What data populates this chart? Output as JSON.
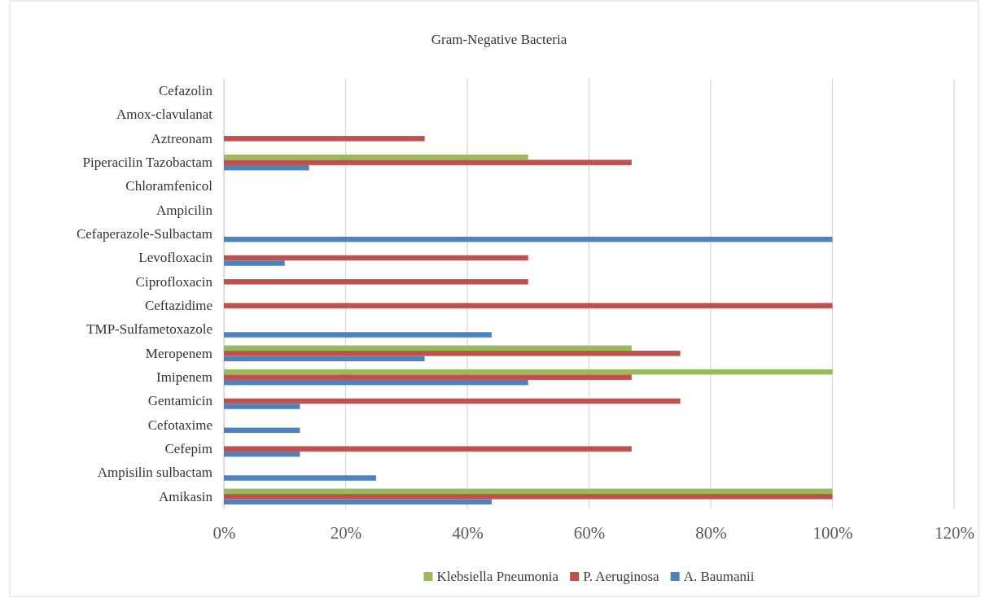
{
  "chart_data": {
    "type": "bar",
    "orientation": "horizontal",
    "title": "Gram-Negative Bacteria",
    "categories": [
      "Cefazolin",
      "Amox-clavulanat",
      "Aztreonam",
      "Piperacilin Tazobactam",
      "Chloramfenicol",
      "Ampicilin",
      "Cefaperazole-Sulbactam",
      "Levofloxacin",
      "Ciprofloxacin",
      "Ceftazidime",
      "TMP-Sulfametoxazole",
      "Meropenem",
      "Imipenem",
      "Gentamicin",
      "Cefotaxime",
      "Cefepim",
      "Ampisilin sulbactam",
      "Amikasin"
    ],
    "series": [
      {
        "name": "Klebsiella Pneumonia",
        "color": "#9bbb59",
        "values": [
          0,
          0,
          0,
          50,
          0,
          0,
          0,
          0,
          0,
          0,
          0,
          67,
          100,
          0,
          0,
          0,
          0,
          100
        ]
      },
      {
        "name": "P. Aeruginosa",
        "color": "#c0504d",
        "values": [
          0,
          0,
          33,
          67,
          0,
          0,
          0,
          50,
          50,
          100,
          0,
          75,
          67,
          75,
          0,
          67,
          0,
          100
        ]
      },
      {
        "name": "A. Baumanii",
        "color": "#4f81bd",
        "values": [
          0,
          0,
          0,
          14,
          0,
          0,
          100,
          10,
          0,
          0,
          44,
          33,
          50,
          12.5,
          12.5,
          12.5,
          25,
          44
        ]
      }
    ],
    "xlim": [
      0,
      120
    ],
    "xticks": [
      {
        "value": 0,
        "label": "0%"
      },
      {
        "value": 20,
        "label": "20%"
      },
      {
        "value": 40,
        "label": "40%"
      },
      {
        "value": 60,
        "label": "60%"
      },
      {
        "value": 80,
        "label": "80%"
      },
      {
        "value": 100,
        "label": "100%"
      },
      {
        "value": 120,
        "label": "120%"
      }
    ],
    "grid": "x",
    "legend": "bottom"
  }
}
